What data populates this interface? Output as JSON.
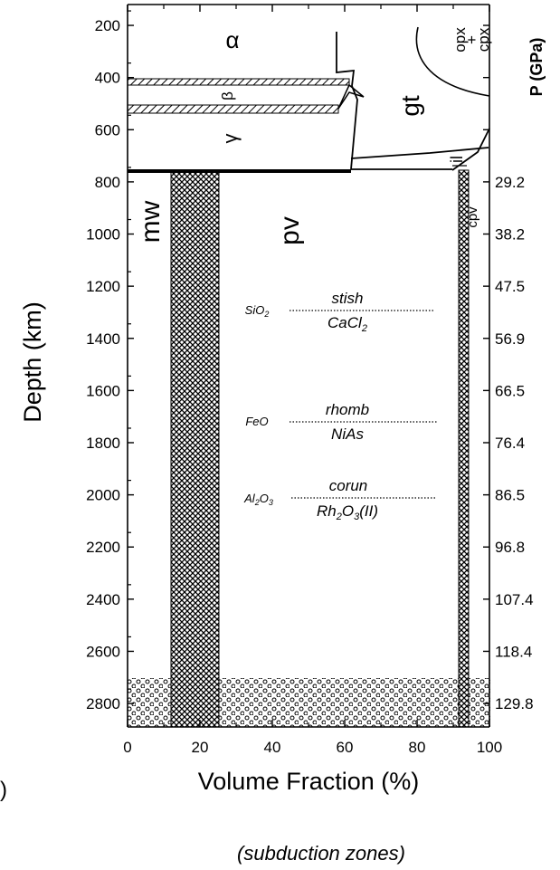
{
  "panel_marker": ")",
  "caption": "(subduction zones)",
  "axes": {
    "x_title": "Volume Fraction (%)",
    "y_left_title": "Depth (km)",
    "y_right_title": "P (GPa)",
    "x_ticks": [
      "0",
      "20",
      "40",
      "60",
      "80",
      "100"
    ],
    "y_left_ticks": [
      "200",
      "400",
      "600",
      "800",
      "1000",
      "1200",
      "1400",
      "1600",
      "1800",
      "2000",
      "2200",
      "2400",
      "2600",
      "2800"
    ],
    "y_right_ticks": [
      "29.2",
      "38.2",
      "47.5",
      "56.9",
      "66.5",
      "76.4",
      "86.5",
      "96.8",
      "107.4",
      "118.4",
      "129.8"
    ]
  },
  "chart_data": {
    "type": "area",
    "xlabel": "Volume Fraction (%)",
    "ylabel": "Depth (km)",
    "y2label": "P (GPa)",
    "xlim": [
      0,
      100
    ],
    "ylim": [
      120,
      2890
    ],
    "y_inverted": true,
    "pressure_scale": [
      {
        "depth_km": 800,
        "p_gpa": 29.2
      },
      {
        "depth_km": 1000,
        "p_gpa": 38.2
      },
      {
        "depth_km": 1200,
        "p_gpa": 47.5
      },
      {
        "depth_km": 1400,
        "p_gpa": 56.9
      },
      {
        "depth_km": 1600,
        "p_gpa": 66.5
      },
      {
        "depth_km": 1800,
        "p_gpa": 76.4
      },
      {
        "depth_km": 2000,
        "p_gpa": 86.5
      },
      {
        "depth_km": 2200,
        "p_gpa": 96.8
      },
      {
        "depth_km": 2400,
        "p_gpa": 107.4
      },
      {
        "depth_km": 2600,
        "p_gpa": 118.4
      },
      {
        "depth_km": 2800,
        "p_gpa": 129.8
      }
    ],
    "upper_mantle_phases": {
      "alpha": "α",
      "beta": "β",
      "gamma": "γ",
      "gt": "gt",
      "opx_cpx": [
        "opx",
        "+",
        "cpx"
      ],
      "il": "il"
    },
    "lower_mantle_phases": {
      "mw": "mw",
      "pv": "pv",
      "cpv": "cpv"
    },
    "transitions": [
      {
        "oxide": "SiO",
        "oxide_sub": "2",
        "upper": "stish",
        "lower": "CaCl",
        "lower_sub": "2",
        "lower_tail": "",
        "depth_km": 1250
      },
      {
        "oxide": "FeO",
        "oxide_sub": "",
        "upper": "rhomb",
        "lower": "NiAs",
        "lower_sub": "",
        "lower_tail": "",
        "depth_km": 1700
      },
      {
        "oxide": "Al",
        "oxide_sub": "2",
        "oxide_mid": "O",
        "oxide_sub2": "3",
        "upper": "corun",
        "lower": "Rh",
        "lower_sub": "2",
        "lower_mid": "O",
        "lower_sub2": "3",
        "lower_tail": "(II)",
        "depth_km": 2000
      }
    ],
    "colors": {
      "ink": "#000000",
      "background": "#ffffff"
    }
  }
}
